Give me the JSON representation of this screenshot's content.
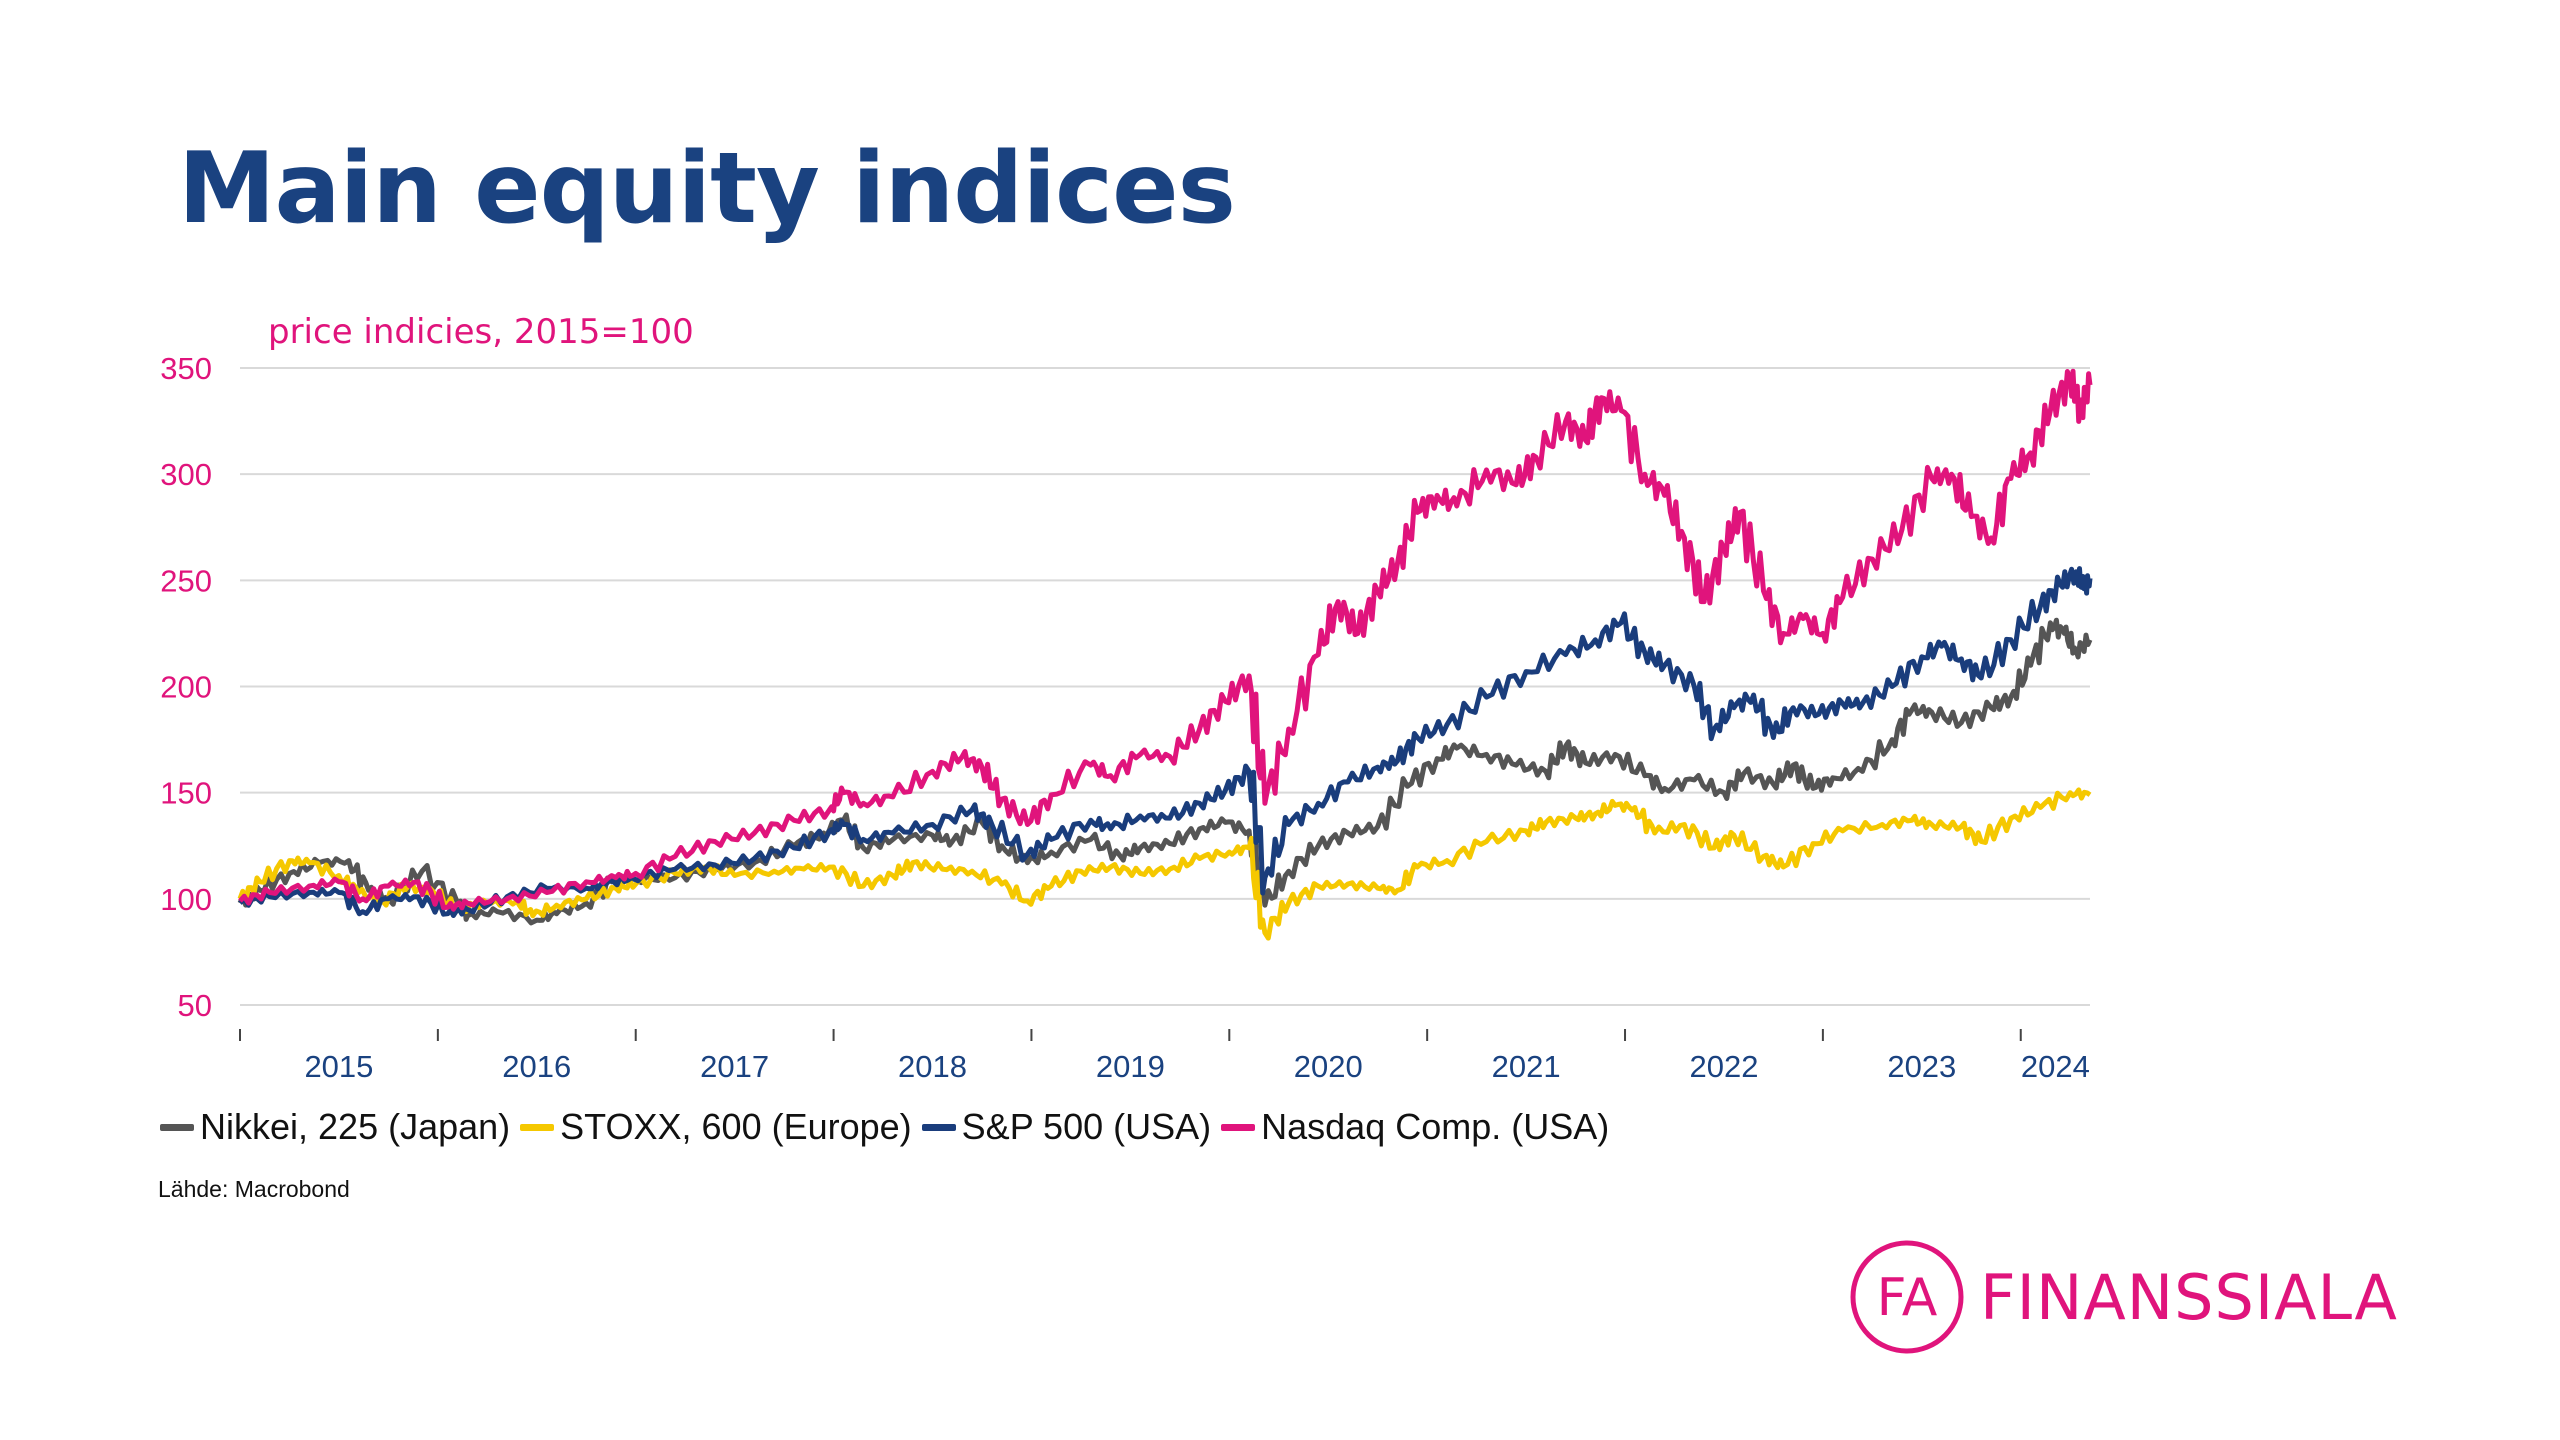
{
  "slide": {
    "title": "Main equity indices",
    "source": "Lähde: Macrobond",
    "logo_text": "FINANSSIALA",
    "logo_monogram": "FA"
  },
  "colors": {
    "title": "#1a4280",
    "accent": "#e0147c",
    "nikkei": "#555555",
    "stoxx": "#f5c800",
    "sp500": "#1a3d7c",
    "nasdaq": "#e0147c",
    "grid": "#d9d9d9",
    "xtick_text": "#1a4280"
  },
  "chart_data": {
    "type": "line",
    "title": "price indicies, 2015=100",
    "ylim": [
      50,
      350
    ],
    "yticks": [
      50,
      100,
      150,
      200,
      250,
      300,
      350
    ],
    "xlim": [
      2015.0,
      2024.35
    ],
    "xticks_labels": [
      "2015",
      "2016",
      "2017",
      "2018",
      "2019",
      "2020",
      "2021",
      "2022",
      "2023",
      "2024"
    ],
    "grid": "horizontal",
    "legend_position": "bottom",
    "series": [
      {
        "name": "Nikkei, 225 (Japan)",
        "color_key": "nikkei",
        "points": [
          [
            2015.0,
            98
          ],
          [
            2015.1,
            104
          ],
          [
            2015.25,
            112
          ],
          [
            2015.4,
            117
          ],
          [
            2015.55,
            118
          ],
          [
            2015.65,
            104
          ],
          [
            2015.75,
            100
          ],
          [
            2015.92,
            113
          ],
          [
            2016.1,
            98
          ],
          [
            2016.15,
            92
          ],
          [
            2016.3,
            94
          ],
          [
            2016.5,
            90
          ],
          [
            2016.6,
            93
          ],
          [
            2016.75,
            98
          ],
          [
            2016.9,
            110
          ],
          [
            2017.0,
            109
          ],
          [
            2017.2,
            110
          ],
          [
            2017.4,
            114
          ],
          [
            2017.6,
            117
          ],
          [
            2017.8,
            125
          ],
          [
            2017.95,
            131
          ],
          [
            2018.05,
            137
          ],
          [
            2018.15,
            124
          ],
          [
            2018.3,
            128
          ],
          [
            2018.5,
            130
          ],
          [
            2018.6,
            127
          ],
          [
            2018.75,
            136
          ],
          [
            2018.85,
            125
          ],
          [
            2018.98,
            117
          ],
          [
            2019.1,
            122
          ],
          [
            2019.3,
            128
          ],
          [
            2019.45,
            120
          ],
          [
            2019.55,
            124
          ],
          [
            2019.7,
            126
          ],
          [
            2019.85,
            133
          ],
          [
            2019.98,
            136
          ],
          [
            2020.1,
            132
          ],
          [
            2020.18,
            97
          ],
          [
            2020.3,
            113
          ],
          [
            2020.45,
            125
          ],
          [
            2020.6,
            131
          ],
          [
            2020.75,
            134
          ],
          [
            2020.9,
            153
          ],
          [
            2021.05,
            166
          ],
          [
            2021.15,
            171
          ],
          [
            2021.3,
            168
          ],
          [
            2021.45,
            163
          ],
          [
            2021.6,
            160
          ],
          [
            2021.7,
            172
          ],
          [
            2021.8,
            164
          ],
          [
            2021.95,
            168
          ],
          [
            2022.1,
            158
          ],
          [
            2022.2,
            152
          ],
          [
            2022.35,
            156
          ],
          [
            2022.5,
            150
          ],
          [
            2022.6,
            159
          ],
          [
            2022.75,
            154
          ],
          [
            2022.85,
            163
          ],
          [
            2022.95,
            152
          ],
          [
            2023.05,
            157
          ],
          [
            2023.2,
            160
          ],
          [
            2023.35,
            175
          ],
          [
            2023.45,
            189
          ],
          [
            2023.55,
            188
          ],
          [
            2023.7,
            183
          ],
          [
            2023.85,
            190
          ],
          [
            2023.95,
            195
          ],
          [
            2024.05,
            210
          ],
          [
            2024.15,
            230
          ],
          [
            2024.22,
            225
          ],
          [
            2024.28,
            217
          ],
          [
            2024.35,
            222
          ]
        ]
      },
      {
        "name": "STOXX, 600 (Europe)",
        "color_key": "stoxx",
        "points": [
          [
            2015.0,
            100
          ],
          [
            2015.1,
            108
          ],
          [
            2015.25,
            118
          ],
          [
            2015.35,
            117
          ],
          [
            2015.5,
            111
          ],
          [
            2015.6,
            103
          ],
          [
            2015.72,
            99
          ],
          [
            2015.85,
            106
          ],
          [
            2015.98,
            103
          ],
          [
            2016.1,
            95
          ],
          [
            2016.25,
            98
          ],
          [
            2016.4,
            99
          ],
          [
            2016.48,
            92
          ],
          [
            2016.6,
            97
          ],
          [
            2016.75,
            100
          ],
          [
            2016.9,
            105
          ],
          [
            2017.0,
            107
          ],
          [
            2017.2,
            112
          ],
          [
            2017.35,
            115
          ],
          [
            2017.5,
            111
          ],
          [
            2017.7,
            113
          ],
          [
            2017.85,
            114
          ],
          [
            2018.0,
            115
          ],
          [
            2018.15,
            106
          ],
          [
            2018.3,
            111
          ],
          [
            2018.4,
            117
          ],
          [
            2018.55,
            114
          ],
          [
            2018.7,
            113
          ],
          [
            2018.85,
            107
          ],
          [
            2018.98,
            99
          ],
          [
            2019.1,
            106
          ],
          [
            2019.25,
            113
          ],
          [
            2019.4,
            115
          ],
          [
            2019.55,
            112
          ],
          [
            2019.7,
            114
          ],
          [
            2019.85,
            119
          ],
          [
            2020.0,
            122
          ],
          [
            2020.1,
            124
          ],
          [
            2020.18,
            84
          ],
          [
            2020.3,
            98
          ],
          [
            2020.45,
            106
          ],
          [
            2020.6,
            107
          ],
          [
            2020.75,
            105
          ],
          [
            2020.85,
            104
          ],
          [
            2020.95,
            115
          ],
          [
            2021.1,
            118
          ],
          [
            2021.3,
            127
          ],
          [
            2021.5,
            132
          ],
          [
            2021.6,
            136
          ],
          [
            2021.75,
            138
          ],
          [
            2021.85,
            140
          ],
          [
            2021.95,
            144
          ],
          [
            2022.05,
            143
          ],
          [
            2022.15,
            131
          ],
          [
            2022.3,
            135
          ],
          [
            2022.45,
            124
          ],
          [
            2022.55,
            130
          ],
          [
            2022.7,
            120
          ],
          [
            2022.8,
            115
          ],
          [
            2022.95,
            126
          ],
          [
            2023.1,
            132
          ],
          [
            2023.3,
            135
          ],
          [
            2023.45,
            137
          ],
          [
            2023.55,
            135
          ],
          [
            2023.7,
            134
          ],
          [
            2023.8,
            127
          ],
          [
            2023.95,
            138
          ],
          [
            2024.1,
            143
          ],
          [
            2024.25,
            150
          ],
          [
            2024.35,
            149
          ]
        ]
      },
      {
        "name": "S&P 500 (USA)",
        "color_key": "sp500",
        "points": [
          [
            2015.0,
            98
          ],
          [
            2015.15,
            101
          ],
          [
            2015.35,
            103
          ],
          [
            2015.5,
            103
          ],
          [
            2015.62,
            94
          ],
          [
            2015.75,
            100
          ],
          [
            2015.9,
            101
          ],
          [
            2016.05,
            93
          ],
          [
            2016.15,
            95
          ],
          [
            2016.35,
            101
          ],
          [
            2016.55,
            105
          ],
          [
            2016.75,
            105
          ],
          [
            2016.85,
            107
          ],
          [
            2016.98,
            110
          ],
          [
            2017.2,
            114
          ],
          [
            2017.4,
            116
          ],
          [
            2017.6,
            119
          ],
          [
            2017.8,
            124
          ],
          [
            2017.98,
            132
          ],
          [
            2018.05,
            135
          ],
          [
            2018.15,
            128
          ],
          [
            2018.3,
            131
          ],
          [
            2018.5,
            135
          ],
          [
            2018.7,
            142
          ],
          [
            2018.8,
            135
          ],
          [
            2018.98,
            121
          ],
          [
            2019.1,
            128
          ],
          [
            2019.3,
            137
          ],
          [
            2019.4,
            133
          ],
          [
            2019.55,
            139
          ],
          [
            2019.7,
            138
          ],
          [
            2019.85,
            145
          ],
          [
            2019.98,
            151
          ],
          [
            2020.1,
            160
          ],
          [
            2020.18,
            110
          ],
          [
            2020.3,
            135
          ],
          [
            2020.45,
            145
          ],
          [
            2020.6,
            155
          ],
          [
            2020.75,
            162
          ],
          [
            2020.85,
            165
          ],
          [
            2020.95,
            176
          ],
          [
            2021.1,
            182
          ],
          [
            2021.3,
            195
          ],
          [
            2021.5,
            207
          ],
          [
            2021.7,
            215
          ],
          [
            2021.85,
            222
          ],
          [
            2021.98,
            230
          ],
          [
            2022.1,
            216
          ],
          [
            2022.2,
            210
          ],
          [
            2022.35,
            200
          ],
          [
            2022.45,
            180
          ],
          [
            2022.55,
            190
          ],
          [
            2022.65,
            196
          ],
          [
            2022.75,
            176
          ],
          [
            2022.85,
            190
          ],
          [
            2022.98,
            187
          ],
          [
            2023.1,
            192
          ],
          [
            2023.2,
            192
          ],
          [
            2023.35,
            200
          ],
          [
            2023.5,
            214
          ],
          [
            2023.6,
            219
          ],
          [
            2023.7,
            213
          ],
          [
            2023.8,
            204
          ],
          [
            2023.95,
            222
          ],
          [
            2024.1,
            238
          ],
          [
            2024.2,
            248
          ],
          [
            2024.28,
            254
          ],
          [
            2024.32,
            246
          ],
          [
            2024.35,
            251
          ]
        ]
      },
      {
        "name": "Nasdaq Comp. (USA)",
        "color_key": "nasdaq",
        "points": [
          [
            2015.0,
            99
          ],
          [
            2015.15,
            103
          ],
          [
            2015.35,
            106
          ],
          [
            2015.5,
            108
          ],
          [
            2015.62,
            100
          ],
          [
            2015.75,
            106
          ],
          [
            2015.9,
            108
          ],
          [
            2016.05,
            96
          ],
          [
            2016.15,
            98
          ],
          [
            2016.35,
            100
          ],
          [
            2016.55,
            103
          ],
          [
            2016.75,
            108
          ],
          [
            2016.9,
            110
          ],
          [
            2017.0,
            112
          ],
          [
            2017.2,
            120
          ],
          [
            2017.4,
            127
          ],
          [
            2017.6,
            131
          ],
          [
            2017.8,
            137
          ],
          [
            2017.98,
            142
          ],
          [
            2018.05,
            150
          ],
          [
            2018.15,
            145
          ],
          [
            2018.3,
            148
          ],
          [
            2018.5,
            160
          ],
          [
            2018.65,
            167
          ],
          [
            2018.75,
            162
          ],
          [
            2018.85,
            147
          ],
          [
            2018.98,
            135
          ],
          [
            2019.1,
            149
          ],
          [
            2019.3,
            163
          ],
          [
            2019.4,
            158
          ],
          [
            2019.55,
            168
          ],
          [
            2019.7,
            167
          ],
          [
            2019.85,
            180
          ],
          [
            2019.98,
            193
          ],
          [
            2020.1,
            205
          ],
          [
            2020.18,
            145
          ],
          [
            2020.3,
            180
          ],
          [
            2020.45,
            215
          ],
          [
            2020.55,
            240
          ],
          [
            2020.65,
            225
          ],
          [
            2020.75,
            245
          ],
          [
            2020.85,
            258
          ],
          [
            2020.95,
            282
          ],
          [
            2021.05,
            290
          ],
          [
            2021.15,
            285
          ],
          [
            2021.3,
            302
          ],
          [
            2021.45,
            295
          ],
          [
            2021.55,
            308
          ],
          [
            2021.7,
            325
          ],
          [
            2021.8,
            316
          ],
          [
            2021.88,
            336
          ],
          [
            2021.98,
            330
          ],
          [
            2022.1,
            300
          ],
          [
            2022.2,
            290
          ],
          [
            2022.3,
            270
          ],
          [
            2022.4,
            240
          ],
          [
            2022.5,
            265
          ],
          [
            2022.58,
            282
          ],
          [
            2022.7,
            245
          ],
          [
            2022.8,
            225
          ],
          [
            2022.9,
            232
          ],
          [
            2023.0,
            225
          ],
          [
            2023.1,
            242
          ],
          [
            2023.25,
            260
          ],
          [
            2023.4,
            274
          ],
          [
            2023.55,
            298
          ],
          [
            2023.65,
            300
          ],
          [
            2023.75,
            280
          ],
          [
            2023.85,
            270
          ],
          [
            2023.95,
            298
          ],
          [
            2024.05,
            310
          ],
          [
            2024.15,
            330
          ],
          [
            2024.25,
            345
          ],
          [
            2024.3,
            330
          ],
          [
            2024.35,
            342
          ]
        ]
      }
    ]
  }
}
